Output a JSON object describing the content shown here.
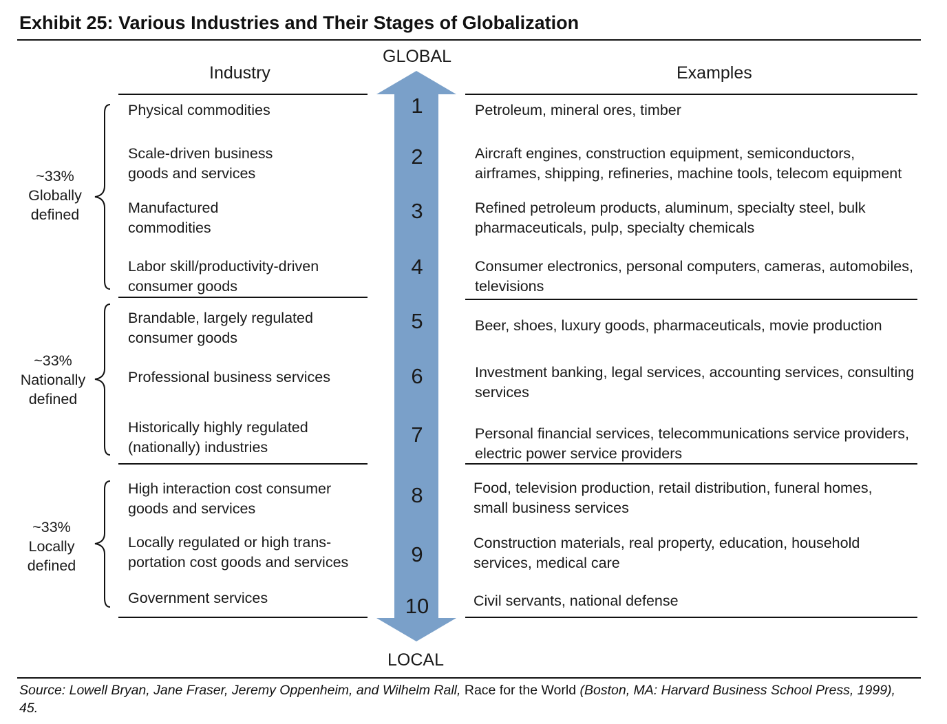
{
  "title": "Exhibit 25: Various Industries and Their Stages of Globalization",
  "headers": {
    "industry": "Industry",
    "examples": "Examples"
  },
  "axis": {
    "top": "GLOBAL",
    "bottom": "LOCAL"
  },
  "colors": {
    "arrow": "#7aa0c9",
    "rule": "#111111"
  },
  "groups": [
    {
      "pct": "~33%",
      "line1": "Globally",
      "line2": "defined"
    },
    {
      "pct": "~33%",
      "line1": "Nationally",
      "line2": "defined"
    },
    {
      "pct": "~33%",
      "line1": "Locally",
      "line2": "defined"
    }
  ],
  "stages": [
    {
      "num": "1",
      "industry": [
        "Physical commodities"
      ],
      "examples": [
        "Petroleum, mineral ores, timber"
      ]
    },
    {
      "num": "2",
      "industry": [
        "Scale-driven business",
        "goods and services"
      ],
      "examples": [
        "Aircraft engines, construction equipment, semiconductors,",
        "airframes, shipping, refineries, machine tools, telecom equipment"
      ]
    },
    {
      "num": "3",
      "industry": [
        "Manufactured",
        "commodities"
      ],
      "examples": [
        "Refined petroleum products, aluminum, specialty steel, bulk",
        "pharmaceuticals, pulp, specialty chemicals"
      ]
    },
    {
      "num": "4",
      "industry": [
        "Labor skill/productivity-driven",
        "consumer goods"
      ],
      "examples": [
        "Consumer electronics, personal computers, cameras, automobiles,",
        "televisions"
      ]
    },
    {
      "num": "5",
      "industry": [
        "Brandable, largely regulated",
        "consumer goods"
      ],
      "examples": [
        "Beer, shoes, luxury goods, pharmaceuticals, movie production"
      ]
    },
    {
      "num": "6",
      "industry": [
        "Professional business services"
      ],
      "examples": [
        "Investment banking, legal services, accounting services, consulting",
        "services"
      ]
    },
    {
      "num": "7",
      "industry": [
        "Historically highly regulated",
        "(nationally) industries"
      ],
      "examples": [
        "Personal financial services, telecommunications service providers,",
        "electric power service providers"
      ]
    },
    {
      "num": "8",
      "industry": [
        "High interaction cost consumer",
        "goods and services"
      ],
      "examples": [
        "Food, television production, retail distribution, funeral homes,",
        "small business services"
      ]
    },
    {
      "num": "9",
      "industry": [
        "Locally regulated or high trans-",
        "portation cost goods and services"
      ],
      "examples": [
        "Construction materials, real property, education, household",
        "services, medical care"
      ]
    },
    {
      "num": "10",
      "industry": [
        "Government services"
      ],
      "examples": [
        "Civil servants, national defense"
      ]
    }
  ],
  "source": {
    "prefix": "Source: Lowell Bryan, Jane Fraser, Jeremy Oppenheim, and Wilhelm Rall, ",
    "book": "Race for the World",
    "suffix": " (Boston, MA: Harvard Business School Press, 1999), 45."
  }
}
